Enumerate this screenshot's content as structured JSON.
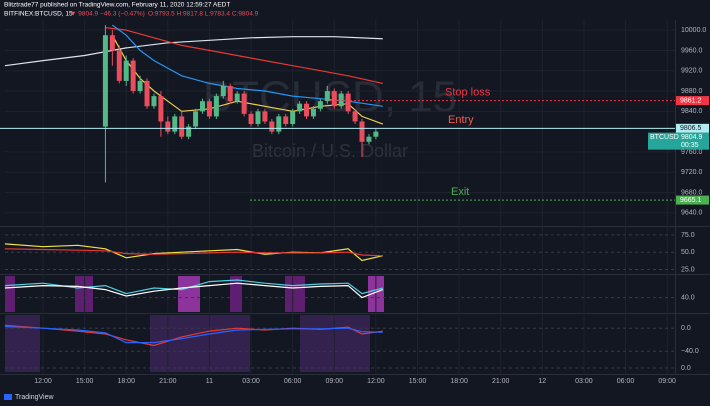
{
  "header": {
    "publisher": "Blitztrade77 published on TradingView.com, February 11, 2020 12:59:27 AEDT",
    "symbol": "BITFINEX:BTCUSD, 15",
    "price": "▼ 9804.9",
    "change": "−46.3 (−0.47%)",
    "ohlc": "O:9793.5 H:9817.8 L:9783.4 C:9804.9",
    "brand": "TradingView"
  },
  "chart_data": [
    {
      "type": "candlestick",
      "title": "BTCUSD, 15",
      "subtitle": "Bitcoin / U.S. Dollar",
      "up_color": "#53b987",
      "down_color": "#eb4d5c",
      "x": [
        16.5,
        17,
        17.5,
        18,
        18.5,
        19,
        19.5,
        20,
        20.5,
        21,
        21.5,
        22,
        22.5,
        23,
        23.5,
        24,
        24.5,
        25,
        25.5,
        26,
        26.5,
        27,
        27.5,
        28,
        28.5,
        29,
        29.5,
        30,
        30.5,
        31,
        31.5,
        32,
        32.5,
        33,
        33.5,
        34,
        34.5,
        35,
        35.5,
        36
      ],
      "open": [
        9810,
        9990,
        9960,
        9900,
        9940,
        9880,
        9900,
        9850,
        9870,
        9820,
        9800,
        9830,
        9790,
        9810,
        9840,
        9860,
        9830,
        9870,
        9890,
        9860,
        9875,
        9835,
        9815,
        9840,
        9820,
        9800,
        9830,
        9815,
        9840,
        9855,
        9830,
        9845,
        9860,
        9880,
        9850,
        9875,
        9840,
        9820,
        9780,
        9790
      ],
      "high": [
        10010,
        10000,
        9970,
        9950,
        9945,
        9910,
        9905,
        9875,
        9880,
        9830,
        9835,
        9840,
        9815,
        9845,
        9865,
        9865,
        9875,
        9900,
        9895,
        9880,
        9880,
        9840,
        9845,
        9845,
        9825,
        9835,
        9835,
        9845,
        9860,
        9860,
        9850,
        9865,
        9890,
        9885,
        9880,
        9880,
        9845,
        9825,
        9795,
        9805
      ],
      "low": [
        9700,
        9930,
        9895,
        9890,
        9875,
        9875,
        9845,
        9845,
        9790,
        9795,
        9795,
        9785,
        9785,
        9805,
        9835,
        9825,
        9825,
        9865,
        9855,
        9855,
        9830,
        9810,
        9810,
        9815,
        9795,
        9795,
        9810,
        9810,
        9835,
        9825,
        9825,
        9840,
        9855,
        9845,
        9845,
        9835,
        9815,
        9750,
        9775,
        9785
      ],
      "close": [
        9990,
        9960,
        9900,
        9940,
        9880,
        9900,
        9850,
        9870,
        9820,
        9800,
        9830,
        9790,
        9810,
        9840,
        9860,
        9830,
        9870,
        9890,
        9860,
        9875,
        9835,
        9815,
        9840,
        9820,
        9800,
        9830,
        9815,
        9840,
        9855,
        9830,
        9845,
        9860,
        9880,
        9850,
        9875,
        9840,
        9820,
        9780,
        9790,
        9800
      ],
      "series": [
        {
          "color": "#e0e3eb",
          "x": [
            9.25,
            12,
            15,
            18,
            21,
            24,
            27,
            30,
            33,
            36.5
          ],
          "values": [
            9930,
            9940,
            9950,
            9965,
            9975,
            9980,
            9985,
            9987,
            9987,
            9983
          ]
        },
        {
          "color": "#e53935",
          "x": [
            16.5,
            18,
            20,
            22,
            24,
            26,
            28,
            30,
            32,
            34,
            36.5
          ],
          "values": [
            10005,
            10000,
            9985,
            9970,
            9960,
            9950,
            9940,
            9930,
            9920,
            9910,
            9895
          ]
        },
        {
          "color": "#2196f3",
          "x": [
            17,
            18,
            19,
            20,
            22,
            24,
            26,
            28,
            30,
            32,
            34,
            36.5
          ],
          "values": [
            10010,
            9990,
            9960,
            9940,
            9910,
            9895,
            9885,
            9880,
            9870,
            9865,
            9860,
            9850
          ]
        },
        {
          "color": "#f0d04a",
          "x": [
            17,
            18,
            19,
            20,
            21,
            22,
            24,
            26,
            28,
            30,
            32,
            34,
            35,
            36.5
          ],
          "values": [
            9990,
            9940,
            9905,
            9880,
            9860,
            9840,
            9845,
            9860,
            9850,
            9840,
            9850,
            9855,
            9830,
            9815
          ]
        }
      ],
      "levels": [
        {
          "text": "Stop loss",
          "value": 9861.2,
          "color": "#f23645",
          "dash": true
        },
        {
          "text": "Entry",
          "value": 9806.5,
          "color": "#b2ebf2",
          "dash": false
        },
        {
          "text": "Exit",
          "value": 9665.1,
          "color": "#4caf50",
          "dash": true
        }
      ],
      "last": {
        "symbol": "BTCUSD",
        "value": 9804.9,
        "countdown": "00:35"
      },
      "ylim": [
        9616,
        10020
      ],
      "yticks": [
        {
          "value": 10000,
          "label": "10000.0"
        },
        {
          "value": 9960,
          "label": "9960.0"
        },
        {
          "value": 9920,
          "label": "9920.0"
        },
        {
          "value": 9880,
          "label": "9880.0"
        },
        {
          "value": 9840,
          "label": "9840.0"
        },
        {
          "value": 9760,
          "label": "9760.0"
        },
        {
          "value": 9720,
          "label": "9720.0"
        },
        {
          "value": 9680,
          "label": "9680.0"
        },
        {
          "value": 9640,
          "label": "9640.0"
        }
      ],
      "xlim": [
        9.25,
        57.3
      ],
      "xticks": [
        {
          "value": 12,
          "label": "12:00"
        },
        {
          "value": 15,
          "label": "15:00"
        },
        {
          "value": 18,
          "label": "18:00"
        },
        {
          "value": 21,
          "label": "21:00"
        },
        {
          "value": 24,
          "label": "11"
        },
        {
          "value": 27,
          "label": "03:00"
        },
        {
          "value": 30,
          "label": "06:00"
        },
        {
          "value": 33,
          "label": "09:00"
        },
        {
          "value": 36,
          "label": "12:00"
        },
        {
          "value": 39,
          "label": "15:00"
        },
        {
          "value": 42,
          "label": "18:00"
        },
        {
          "value": 45,
          "label": "21:00"
        },
        {
          "value": 48,
          "label": "12"
        },
        {
          "value": 51,
          "label": "03:00"
        },
        {
          "value": 54,
          "label": "06:00"
        },
        {
          "value": 57,
          "label": "09:00"
        }
      ]
    },
    {
      "type": "line",
      "x": [
        9.25,
        12,
        14.5,
        16.5,
        18,
        20,
        22,
        24,
        26,
        28,
        30,
        32,
        34,
        35,
        36.5
      ],
      "series": [
        {
          "color": "#f0e442",
          "values": [
            62,
            58,
            60,
            55,
            42,
            48,
            50,
            52,
            54,
            47,
            50,
            49,
            55,
            38,
            45
          ]
        },
        {
          "color": "#e53935",
          "values": [
            55,
            54,
            53,
            52,
            48,
            47,
            48,
            49,
            50,
            49,
            49,
            49,
            50,
            46,
            45
          ]
        }
      ],
      "ylim": [
        20,
        85
      ],
      "yticks": [
        {
          "value": 75,
          "label": "75.0"
        },
        {
          "value": 50,
          "label": "50.0"
        },
        {
          "value": 25,
          "label": "25.0"
        }
      ]
    },
    {
      "type": "line",
      "x": [
        9.25,
        12,
        14.5,
        16.5,
        18,
        20,
        22,
        24,
        26,
        28,
        30,
        32,
        34,
        35,
        36.5
      ],
      "series": [
        {
          "color": "#4dd0e1",
          "values": [
            55,
            58,
            52,
            55,
            45,
            52,
            50,
            60,
            62,
            58,
            55,
            57,
            58,
            45,
            52
          ]
        },
        {
          "color": "#ffffff",
          "values": [
            52,
            55,
            54,
            50,
            42,
            48,
            52,
            55,
            58,
            55,
            52,
            54,
            55,
            40,
            50
          ]
        }
      ],
      "ylim": [
        22,
        67
      ],
      "yticks": [
        {
          "value": 40,
          "label": "40.0"
        }
      ]
    },
    {
      "type": "line",
      "x": [
        9.25,
        12,
        14.5,
        16.5,
        18,
        20,
        22,
        24,
        26,
        28,
        30,
        32,
        34,
        35,
        36.5
      ],
      "series": [
        {
          "color": "#e53935",
          "values": [
            5,
            0,
            -5,
            -10,
            -20,
            -30,
            -15,
            -5,
            0,
            -3,
            0,
            -2,
            2,
            -10,
            -5
          ]
        },
        {
          "color": "#2962ff",
          "values": [
            3,
            0,
            -3,
            -8,
            -25,
            -25,
            -18,
            -10,
            -3,
            -2,
            -1,
            -1,
            0,
            -6,
            -7
          ]
        }
      ],
      "ylim": [
        -76,
        23
      ],
      "yticks": [
        {
          "value": 0,
          "label": "0.0"
        },
        {
          "value": -40,
          "label": "−40.0"
        }
      ],
      "y2lim": [
        -7,
        93
      ],
      "y2ticks": [
        {
          "value": 0,
          "label": "0.0"
        }
      ]
    }
  ]
}
